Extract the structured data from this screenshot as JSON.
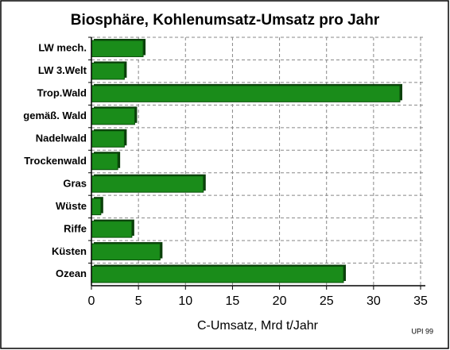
{
  "chart_data": {
    "type": "barh",
    "title": "Biosphäre, Kohlenumsatz-Umsatz pro Jahr",
    "categories": [
      "LW mech.",
      "LW 3.Welt",
      "Trop.Wald",
      "gemäß. Wald",
      "Nadelwald",
      "Trockenwald",
      "Gras",
      "Wüste",
      "Riffe",
      "Küsten",
      "Ozean"
    ],
    "values": [
      5.5,
      3.5,
      32.8,
      4.6,
      3.5,
      2.8,
      11.9,
      1.0,
      4.3,
      7.3,
      26.8
    ],
    "color": "#1a8c1a",
    "x_label": "C-Umsatz, Mrd t/Jahr",
    "source": "UPI 99",
    "xlim": [
      0,
      35
    ],
    "xticks": [
      0,
      5,
      10,
      15,
      20,
      25,
      30,
      35
    ],
    "grid": true
  }
}
